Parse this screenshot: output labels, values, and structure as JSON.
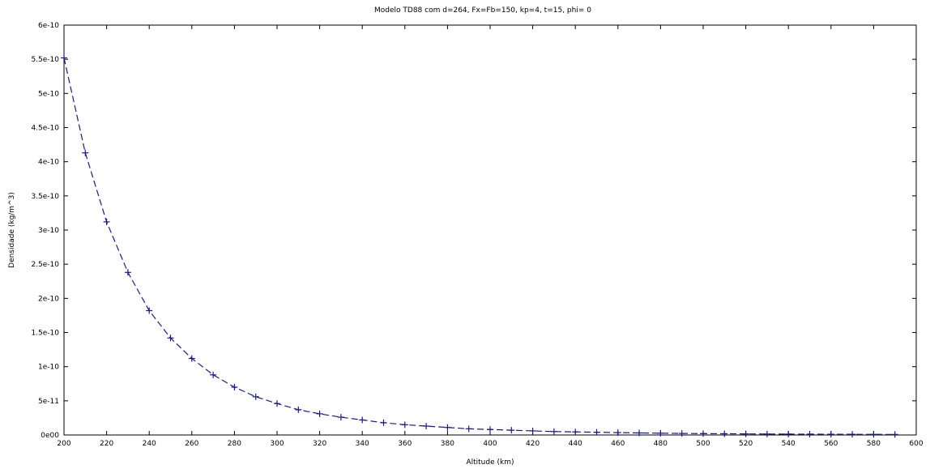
{
  "chart_data": {
    "type": "line",
    "title": "Modelo TD88 com d=264, Fx=Fb=150, kp=4, t=15, phi= 0",
    "xlabel": "Altitude (km)",
    "ylabel": "Densidade (kg/m^3)",
    "xlim": [
      200,
      600
    ],
    "ylim": [
      0,
      6e-10
    ],
    "x_ticks": [
      200,
      220,
      240,
      260,
      280,
      300,
      320,
      340,
      360,
      380,
      400,
      420,
      440,
      460,
      480,
      500,
      520,
      540,
      560,
      580,
      600
    ],
    "y_ticks": [
      0,
      5e-11,
      1e-10,
      1.5e-10,
      2e-10,
      2.5e-10,
      3e-10,
      3.5e-10,
      4e-10,
      4.5e-10,
      5e-10,
      5.5e-10,
      6e-10
    ],
    "y_tick_labels": [
      "0e00",
      "5e-11",
      "1e-10",
      "1.5e-10",
      "2e-10",
      "2.5e-10",
      "3e-10",
      "3.5e-10",
      "4e-10",
      "4.5e-10",
      "5e-10",
      "5.5e-10",
      "6e-10"
    ],
    "grid": false,
    "colors": {
      "series": "#1a1a8c",
      "axes": "#000000"
    },
    "series": [
      {
        "line_style": "dashed",
        "marker": "plus",
        "x": [
          200,
          210,
          220,
          230,
          240,
          250,
          260,
          270,
          280,
          290,
          300,
          310,
          320,
          330,
          340,
          350,
          360,
          370,
          380,
          390,
          400,
          410,
          420,
          430,
          440,
          450,
          460,
          470,
          480,
          490,
          500,
          510,
          520,
          530,
          540,
          550,
          560,
          570,
          580,
          590
        ],
        "y": [
          5.52e-10,
          4.13e-10,
          3.12e-10,
          2.38e-10,
          1.82e-10,
          1.42e-10,
          1.12e-10,
          8.8e-11,
          7e-11,
          5.6e-11,
          4.6e-11,
          3.7e-11,
          3.1e-11,
          2.6e-11,
          2.2e-11,
          1.8e-11,
          1.5e-11,
          1.3e-11,
          1.1e-11,
          9e-12,
          8e-12,
          7e-12,
          6e-12,
          5e-12,
          4.5e-12,
          4e-12,
          3.5e-12,
          3e-12,
          2.6e-12,
          2.3e-12,
          2e-12,
          1.8e-12,
          1.6e-12,
          1.4e-12,
          1.3e-12,
          1.2e-12,
          1.1e-12,
          1e-12,
          9e-13,
          8e-13
        ]
      }
    ]
  }
}
